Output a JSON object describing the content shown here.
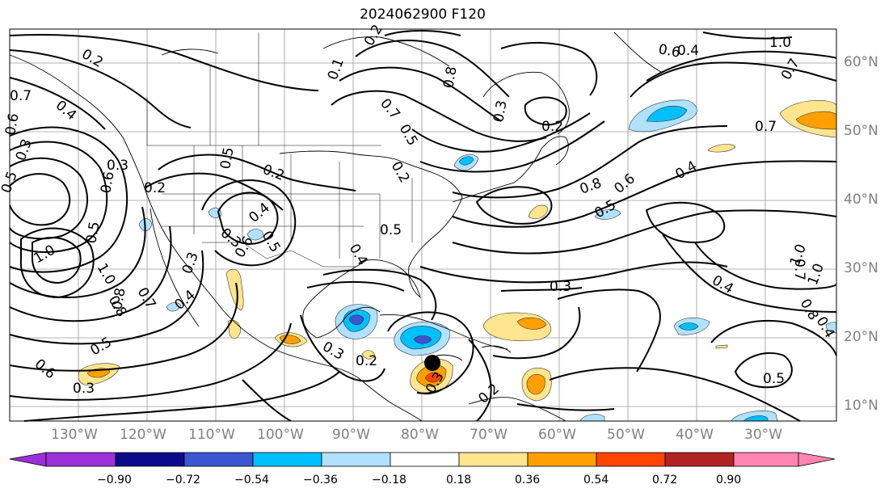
{
  "title": "2024062900 F120",
  "longitude_labels": [
    "130°W",
    "120°W",
    "110°W",
    "100°W",
    "90°W",
    "80°W",
    "70°W",
    "60°W",
    "50°W",
    "40°W",
    "30°W"
  ],
  "latitude_labels": [
    "60°N",
    "50°N",
    "40°N",
    "30°N",
    "20°N",
    "10°N"
  ],
  "contour_labels": [
    "0.2",
    "0.4",
    "0.7",
    "0.5",
    "0.3",
    "0.2",
    "0.3",
    "0.2",
    "0.7",
    "0.5",
    "0.8",
    "0.1",
    "0.2",
    "0.2",
    "0.5",
    "0.3",
    "0.6",
    "0.4",
    "0.7",
    "1.0",
    "0.4",
    "0.3",
    "0.7",
    "0.8",
    "0.6",
    "0.5",
    "0.4",
    "0.6",
    "0.8",
    "1.0",
    "0.4",
    "0.3",
    "1.0",
    "0.8",
    "0.5",
    "0.3",
    "0.2",
    "0.3",
    "0.2",
    "0.4",
    "0.6",
    "0.5",
    "0.3",
    "1.0",
    "0.7",
    "0.5",
    "0.3",
    "0.6",
    "0.4",
    "0.5",
    "0.5",
    "0.4",
    "0.7",
    "1.0",
    "0.8",
    "0.6",
    "0.2"
  ],
  "colorbar": {
    "ticks": [
      "−0.90",
      "−0.72",
      "−0.54",
      "−0.36",
      "−0.18",
      "0.18",
      "0.36",
      "0.54",
      "0.72",
      "0.90"
    ],
    "colors": [
      "#9b30d8",
      "#0a0a8c",
      "#3a56d0",
      "#00bfff",
      "#b0e2ff",
      "#ffffff",
      "#ffe58f",
      "#ffa000",
      "#ff4500",
      "#b22222",
      "#ff85b0"
    ]
  },
  "marker": "black-circle"
}
